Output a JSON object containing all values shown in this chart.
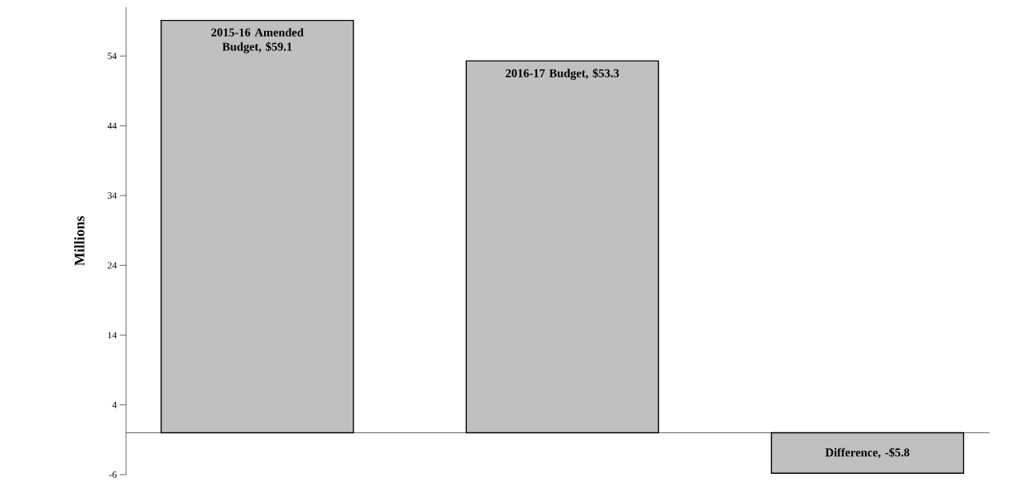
{
  "chart_data": {
    "type": "bar",
    "ylabel": "Millions",
    "categories": [
      null,
      null,
      null
    ],
    "values": [
      59.1,
      53.3,
      -5.8
    ],
    "color": "#c0c0c0",
    "value_labels": [
      "2015-16 Amended Budget, $59.1",
      "2016-17 Budget, $53.3",
      "Difference, -$5.8"
    ],
    "ylim": [
      -6,
      61
    ],
    "yticks": [
      -6,
      4,
      14,
      24,
      34,
      44,
      54
    ],
    "tick_labels": "y"
  }
}
